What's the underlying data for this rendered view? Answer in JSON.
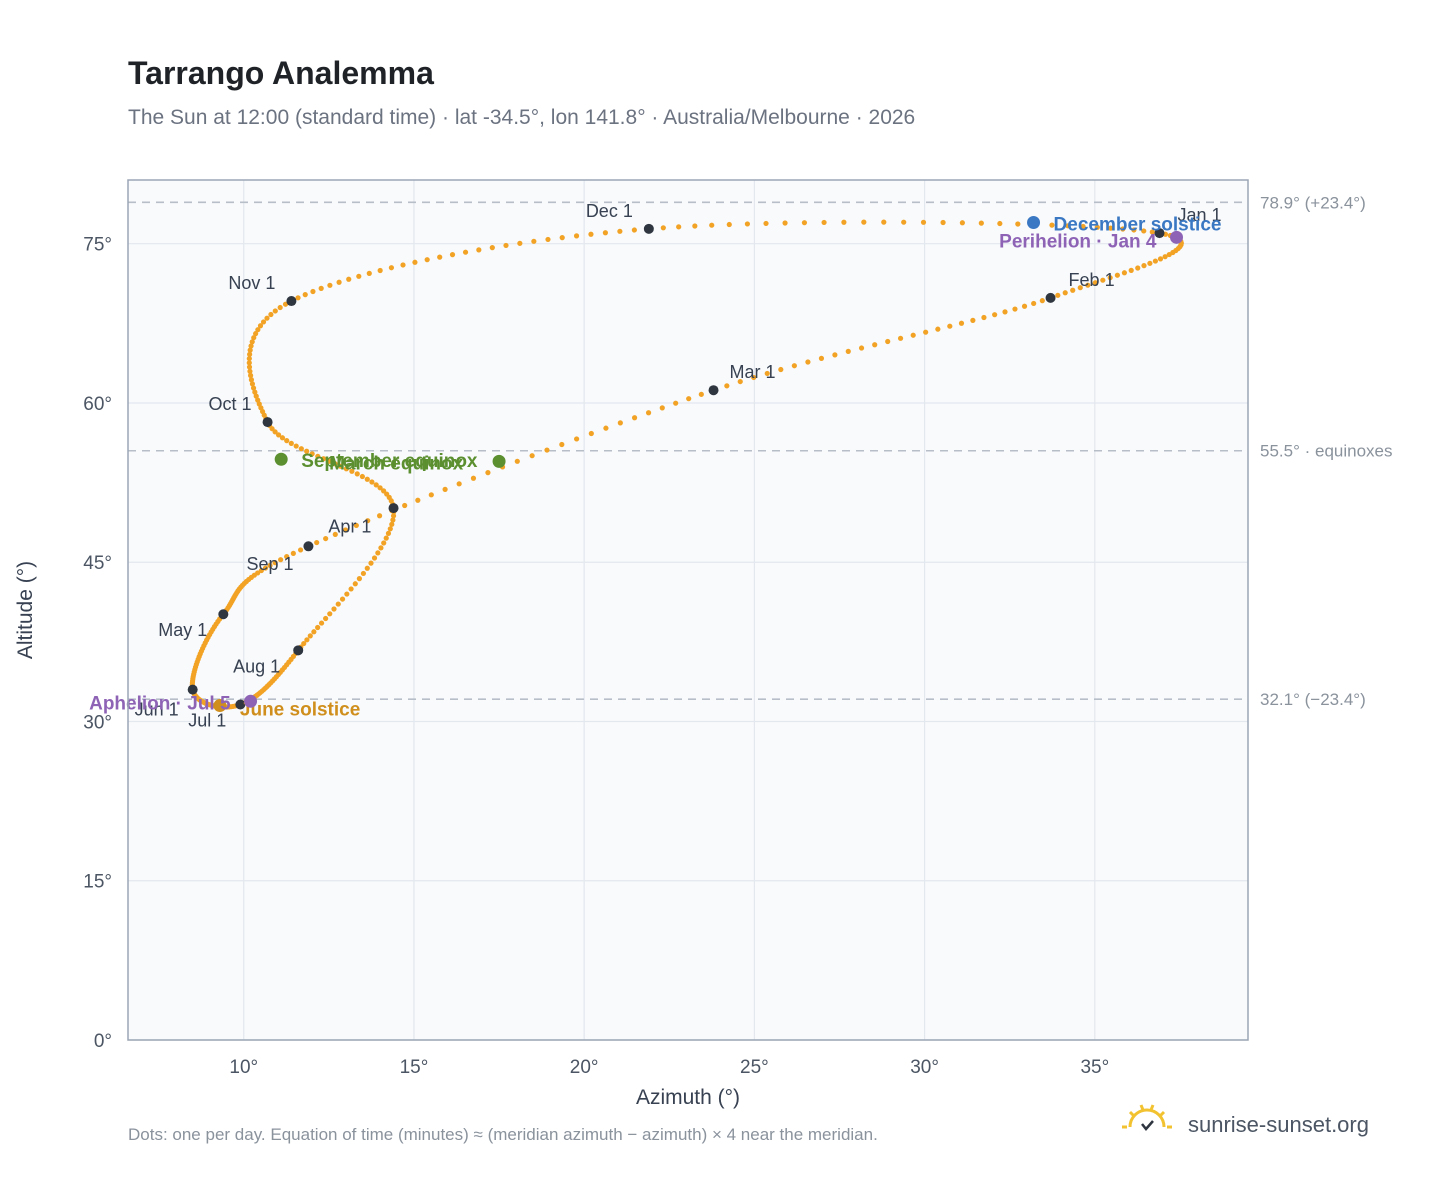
{
  "header": {
    "title": "Tarrango Analemma",
    "subtitle": "The Sun at 12:00 (standard time) · lat -34.5°, lon 141.8° · Australia/Melbourne · 2026"
  },
  "footer": {
    "note": "Dots: one per day. Equation of time (minutes) ≈ (meridian azimuth − azimuth) × 4 near the meridian.",
    "brand": "sunrise-sunset.org",
    "brand_icon": "sun-logo-icon"
  },
  "colors": {
    "path": "#f2a325",
    "month_marker": "#2f3640",
    "equinox": "#5b8f2f",
    "december_solstice": "#3b78c3",
    "june_solstice": "#d08f1c",
    "apsis": "#8e63b6",
    "reference_line": "#b7bec8",
    "plot_background": "#f8fafc",
    "grid": "#e3e8ee",
    "frame": "#9aa6b5"
  },
  "chart_data": {
    "type": "scatter",
    "xlabel": "Azimuth (°)",
    "ylabel": "Altitude (°)",
    "xlim": [
      6.6,
      39.5
    ],
    "ylim": [
      0,
      81
    ],
    "x_ticks": [
      {
        "value": 10,
        "label": "10°"
      },
      {
        "value": 15,
        "label": "15°"
      },
      {
        "value": 20,
        "label": "20°"
      },
      {
        "value": 25,
        "label": "25°"
      },
      {
        "value": 30,
        "label": "30°"
      },
      {
        "value": 35,
        "label": "35°"
      }
    ],
    "y_ticks": [
      {
        "value": 0,
        "label": "0°"
      },
      {
        "value": 15,
        "label": "15°"
      },
      {
        "value": 30,
        "label": "30°"
      },
      {
        "value": 45,
        "label": "45°"
      },
      {
        "value": 60,
        "label": "60°"
      },
      {
        "value": 75,
        "label": "75°"
      }
    ],
    "grid": true,
    "reference_lines": [
      {
        "y": 78.9,
        "label": "78.9° (+23.4°)"
      },
      {
        "y": 55.5,
        "label": "55.5° · equinoxes"
      },
      {
        "y": 32.1,
        "label": "32.1° (−23.4°)"
      }
    ],
    "month_markers": [
      {
        "label": "Jan 1",
        "x": 36.9,
        "y": 76.0
      },
      {
        "label": "Feb 1",
        "x": 33.7,
        "y": 69.9
      },
      {
        "label": "Mar 1",
        "x": 23.8,
        "y": 61.2
      },
      {
        "label": "Apr 1",
        "x": 11.9,
        "y": 46.5
      },
      {
        "label": "May 1",
        "x": 9.4,
        "y": 40.1
      },
      {
        "label": "Jun 1",
        "x": 8.5,
        "y": 33.0
      },
      {
        "label": "Jul 1",
        "x": 9.9,
        "y": 31.6
      },
      {
        "label": "Aug 1",
        "x": 11.6,
        "y": 36.7
      },
      {
        "label": "Sep 1",
        "x": 14.4,
        "y": 50.1
      },
      {
        "label": "Oct 1",
        "x": 10.7,
        "y": 58.2
      },
      {
        "label": "Nov 1",
        "x": 11.4,
        "y": 69.6
      },
      {
        "label": "Dec 1",
        "x": 21.9,
        "y": 76.4
      }
    ],
    "events": [
      {
        "key": "march_equinox",
        "label": "March equinox",
        "x": 17.5,
        "y": 54.5
      },
      {
        "key": "june_solstice",
        "label": "June solstice",
        "x": 9.3,
        "y": 31.5
      },
      {
        "key": "september_equinox",
        "label": "September equinox",
        "x": 11.1,
        "y": 54.7
      },
      {
        "key": "december_solstice",
        "label": "December solstice",
        "x": 33.2,
        "y": 77.0
      },
      {
        "key": "perihelion",
        "label": "Perihelion · Jan 4",
        "x": 37.4,
        "y": 75.6
      },
      {
        "key": "aphelion",
        "label": "Aphelion · Jul 5",
        "x": 10.2,
        "y": 31.9
      }
    ]
  }
}
